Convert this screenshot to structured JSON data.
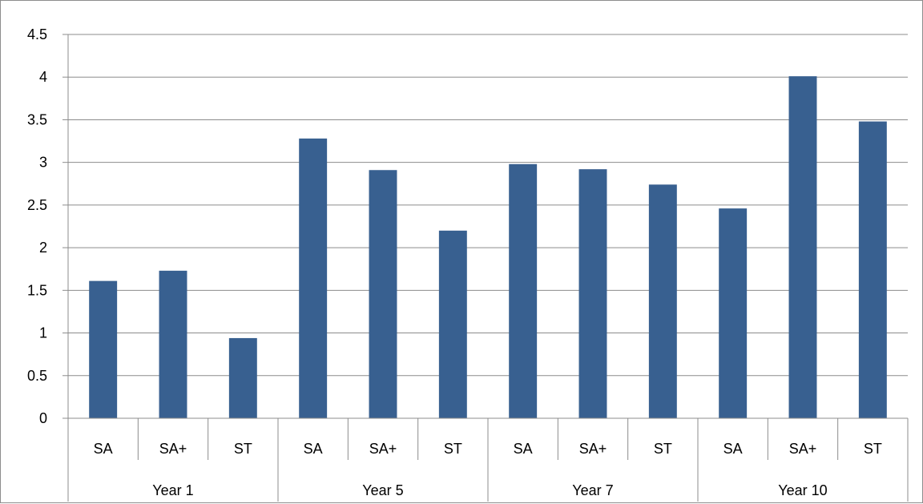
{
  "chart_data": {
    "type": "bar",
    "title": "",
    "xlabel": "",
    "ylabel": "",
    "ylim": [
      0,
      4.5
    ],
    "yticks": [
      "0",
      "0.5",
      "1",
      "1.5",
      "2",
      "2.5",
      "3",
      "3.5",
      "4",
      "4.5"
    ],
    "ytick_values": [
      0,
      0.5,
      1,
      1.5,
      2,
      2.5,
      3,
      3.5,
      4,
      4.5
    ],
    "grid": true,
    "legend": "none",
    "groups": [
      "Year 1",
      "Year 5",
      "Year 7",
      "Year 10"
    ],
    "categories": [
      "SA",
      "SA+",
      "ST",
      "SA",
      "SA+",
      "ST",
      "SA",
      "SA+",
      "ST",
      "SA",
      "SA+",
      "ST"
    ],
    "series": [
      {
        "values": [
          1.61,
          1.73,
          0.94,
          3.28,
          2.91,
          2.2,
          2.98,
          2.92,
          2.74,
          2.46,
          4.01,
          3.48
        ],
        "color": "#386090"
      }
    ]
  }
}
